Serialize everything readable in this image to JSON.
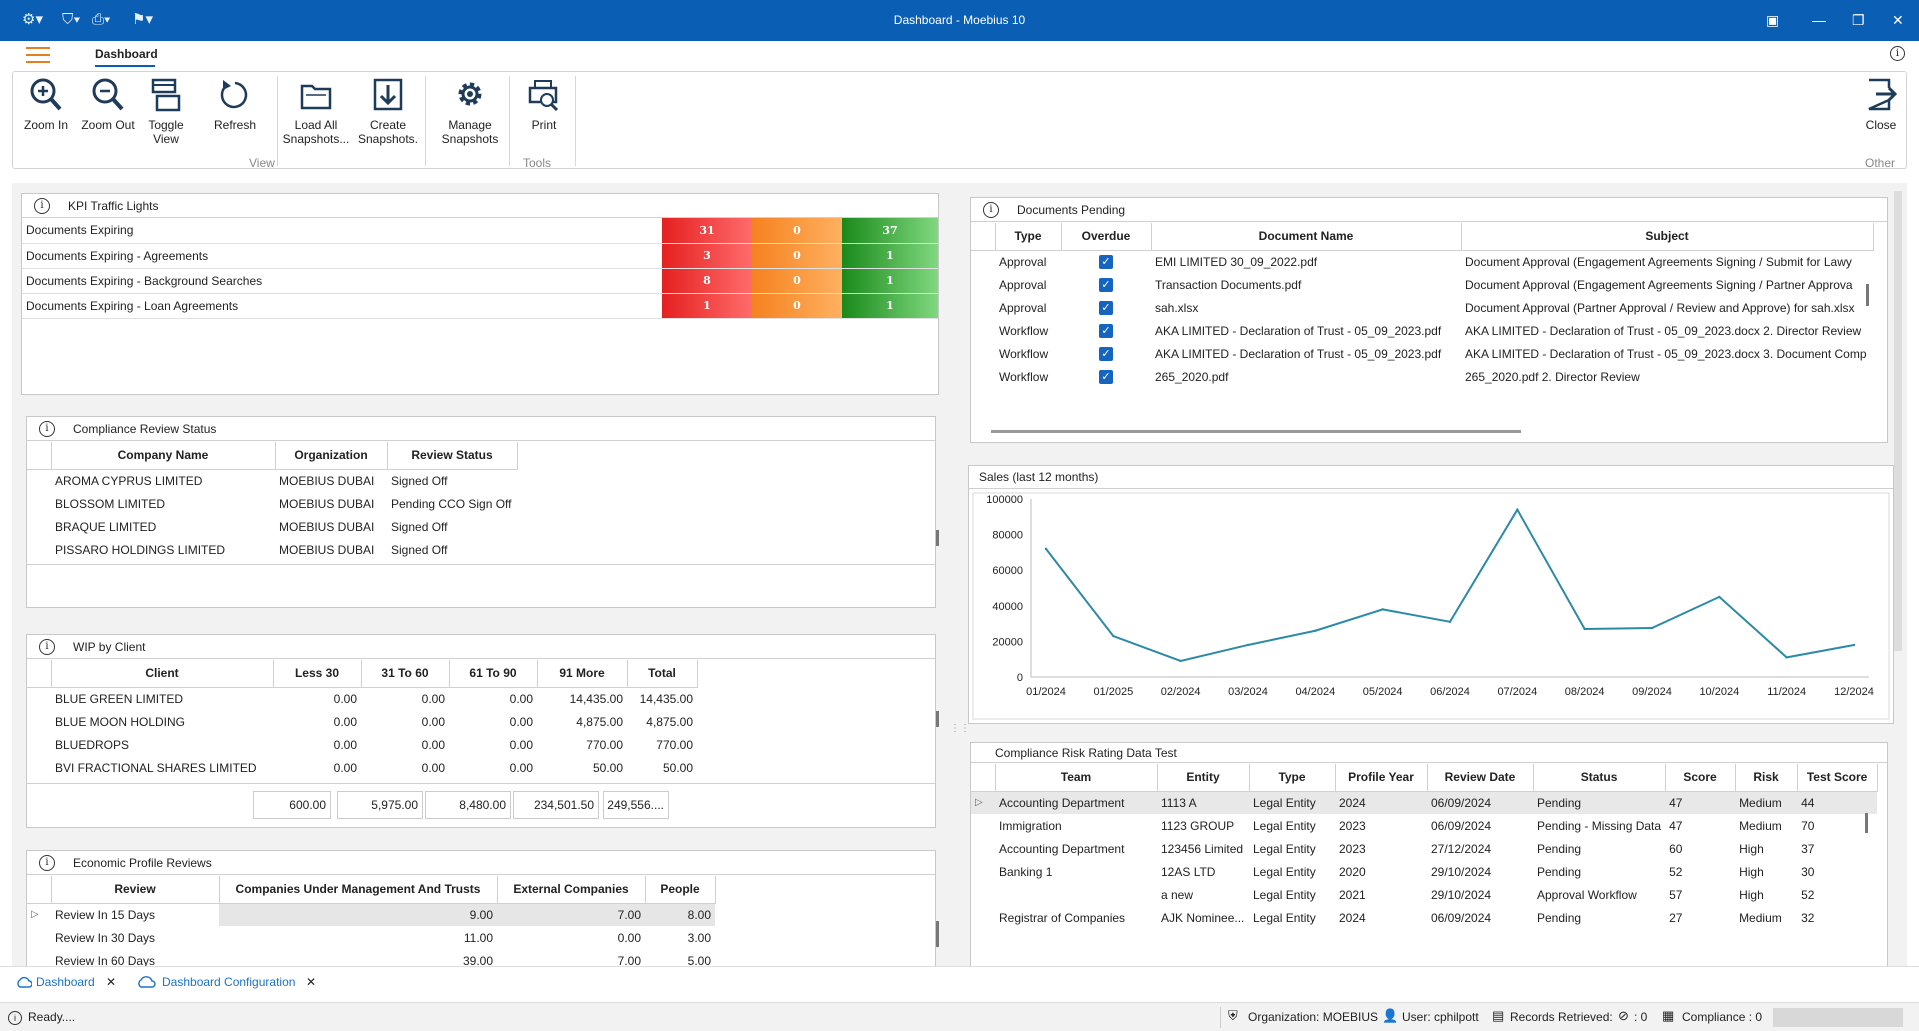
{
  "window": {
    "title": "Dashboard - Moebius 10"
  },
  "menu": {
    "active_tab": "Dashboard"
  },
  "ribbon": {
    "zoom_in": "Zoom In",
    "zoom_out": "Zoom Out",
    "toggle_view_1": "Toggle",
    "toggle_view_2": "View",
    "refresh": "Refresh",
    "load_all_1": "Load All",
    "load_all_2": "Snapshots...",
    "create_1": "Create",
    "create_2": "Snapshots.",
    "manage_1": "Manage",
    "manage_2": "Snapshots",
    "print": "Print",
    "close": "Close",
    "group_view": "View",
    "group_tools": "Tools",
    "group_other": "Other"
  },
  "kpi": {
    "title": "KPI Traffic Lights",
    "rows": [
      {
        "label": "Documents Expiring",
        "red": "31",
        "orange": "0",
        "green": "37"
      },
      {
        "label": "Documents Expiring - Agreements",
        "red": "3",
        "orange": "0",
        "green": "1"
      },
      {
        "label": "Documents Expiring - Background Searches",
        "red": "8",
        "orange": "0",
        "green": "1"
      },
      {
        "label": "Documents Expiring - Loan Agreements",
        "red": "1",
        "orange": "0",
        "green": "1"
      }
    ]
  },
  "compliance": {
    "title": "Compliance Review Status",
    "headers": [
      "Company Name",
      "Organization",
      "Review Status"
    ],
    "rows": [
      [
        "AROMA CYPRUS LIMITED",
        "MOEBIUS DUBAI",
        "Signed Off"
      ],
      [
        "BLOSSOM LIMITED",
        "MOEBIUS DUBAI",
        "Pending CCO Sign Off"
      ],
      [
        "BRAQUE LIMITED",
        "MOEBIUS DUBAI",
        "Signed Off"
      ],
      [
        "PISSARO HOLDINGS  LIMITED",
        "MOEBIUS DUBAI",
        "Signed Off"
      ]
    ]
  },
  "wip": {
    "title": "WIP by Client",
    "headers": [
      "Client",
      "Less 30",
      "31 To 60",
      "61 To 90",
      "91 More",
      "Total"
    ],
    "rows": [
      [
        "BLUE GREEN LIMITED",
        "0.00",
        "0.00",
        "0.00",
        "14,435.00",
        "14,435.00"
      ],
      [
        "BLUE MOON HOLDING",
        "0.00",
        "0.00",
        "0.00",
        "4,875.00",
        "4,875.00"
      ],
      [
        "BLUEDROPS",
        "0.00",
        "0.00",
        "0.00",
        "770.00",
        "770.00"
      ],
      [
        "BVI FRACTIONAL SHARES LIMITED",
        "0.00",
        "0.00",
        "0.00",
        "50.00",
        "50.00"
      ]
    ],
    "totals": [
      "600.00",
      "5,975.00",
      "8,480.00",
      "234,501.50",
      "249,556...."
    ]
  },
  "economic": {
    "title": "Economic Profile Reviews",
    "headers": [
      "Review",
      "Companies Under Management And Trusts",
      "External Companies",
      "People"
    ],
    "rows": [
      [
        "Review In 15 Days",
        "9.00",
        "7.00",
        "8.00"
      ],
      [
        "Review In 30 Days",
        "11.00",
        "0.00",
        "3.00"
      ],
      [
        "Review In 60 Days",
        "39.00",
        "7.00",
        "5.00"
      ]
    ]
  },
  "documents": {
    "title": "Documents Pending",
    "headers": [
      "Type",
      "Overdue",
      "Document Name",
      "Subject"
    ],
    "rows": [
      [
        "Approval",
        "EMI LIMITED 30_09_2022.pdf",
        "Document Approval (Engagement Agreements Signing / Submit for Lawy"
      ],
      [
        "Approval",
        "Transaction Documents.pdf",
        "Document Approval (Engagement Agreements Signing / Partner Approva"
      ],
      [
        "Approval",
        "sah.xlsx",
        "Document Approval (Partner Approval / Review and Approve) for sah.xlsx"
      ],
      [
        "Workflow",
        "AKA LIMITED - Declaration of Trust - 05_09_2023.pdf",
        "AKA LIMITED - Declaration of Trust - 05_09_2023.docx 2. Director Review"
      ],
      [
        "Workflow",
        "AKA LIMITED - Declaration of Trust - 05_09_2023.pdf",
        "AKA LIMITED - Declaration of Trust - 05_09_2023.docx 3. Document Comp"
      ],
      [
        "Workflow",
        "265_2020.pdf",
        "265_2020.pdf 2. Director Review"
      ]
    ]
  },
  "chart_data": {
    "type": "line",
    "title": "Sales (last 12 months)",
    "categories": [
      "01/2024",
      "01/2025",
      "02/2024",
      "03/2024",
      "04/2024",
      "05/2024",
      "06/2024",
      "07/2024",
      "08/2024",
      "09/2024",
      "10/2024",
      "11/2024",
      "12/2024"
    ],
    "values": [
      72000,
      23000,
      9000,
      18000,
      26000,
      38000,
      31000,
      94000,
      27000,
      27500,
      45000,
      11000,
      18000
    ],
    "ylim": [
      0,
      100000
    ],
    "yticks": [
      "100000",
      "80000",
      "60000",
      "40000",
      "20000",
      "0"
    ],
    "color": "#2b8aa5",
    "grid": false
  },
  "risk": {
    "title": "Compliance Risk Rating Data Test",
    "headers": [
      "Team",
      "Entity",
      "Type",
      "Profile Year",
      "Review Date",
      "Status",
      "Score",
      "Risk",
      "Test Score"
    ],
    "rows": [
      [
        "Accounting Department",
        "1113 A",
        "Legal Entity",
        "2024",
        "06/09/2024",
        "Pending",
        "47",
        "Medium",
        "44"
      ],
      [
        "Immigration",
        "1123 GROUP",
        "Legal Entity",
        "2023",
        "06/09/2024",
        "Pending - Missing Data",
        "47",
        "Medium",
        "70"
      ],
      [
        "Accounting Department",
        "123456 Limited",
        "Legal Entity",
        "2023",
        "27/12/2024",
        "Pending",
        "60",
        "High",
        "37"
      ],
      [
        "Banking 1",
        "12AS LTD",
        "Legal Entity",
        "2020",
        "29/10/2024",
        "Pending",
        "52",
        "High",
        "30"
      ],
      [
        "",
        "a new",
        "Legal Entity",
        "2021",
        "29/10/2024",
        "Approval Workflow",
        "57",
        "High",
        "52"
      ],
      [
        "Registrar of Companies",
        "AJK Nominee...",
        "Legal Entity",
        "2024",
        "06/09/2024",
        "Pending",
        "27",
        "Medium",
        "32"
      ]
    ]
  },
  "bottom_tabs": [
    "Dashboard",
    "Dashboard Configuration"
  ],
  "status": {
    "ready": "Ready....",
    "organization": "Organization: MOEBIUS",
    "user": "User: cphilpott",
    "records": "Records Retrieved:",
    "records_count": ": 0",
    "compliance": "Compliance : 0"
  }
}
